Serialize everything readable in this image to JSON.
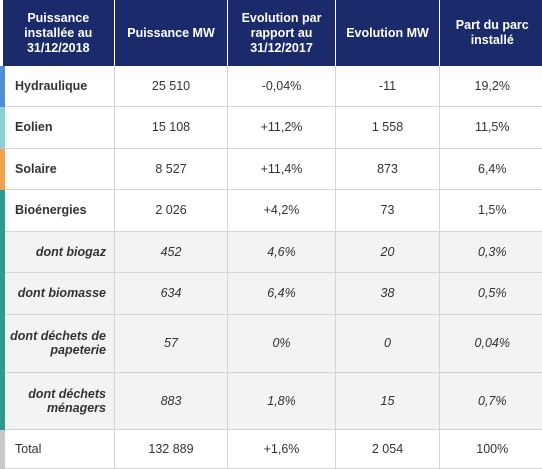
{
  "colors": {
    "header_bg": "#1b2a6b",
    "hydraulique": "#4f8fd6",
    "eolien": "#8fd0d6",
    "solaire": "#f0a24e",
    "bioenergies": "#2f9a8e",
    "sub": "#2f9a8e",
    "total": "#c8c8c8"
  },
  "headers": [
    "Puissance installée au 31/12/2018",
    "Puissance MW",
    "Evolution par rapport au 31/12/2017",
    "Evolution MW",
    "Part du parc installé"
  ],
  "rows": [
    {
      "label": "Hydraulique",
      "power": "25 510",
      "evolution_pct": "-0,04%",
      "evolution_mw": "-11",
      "share": "19,2%",
      "kind": "main",
      "color": "#4f8fd6",
      "height": 40
    },
    {
      "label": "Eolien",
      "power": "15 108",
      "evolution_pct": "+11,2%",
      "evolution_mw": "1 558",
      "share": "11,5%",
      "kind": "main",
      "color": "#8fd0d6",
      "height": 42
    },
    {
      "label": "Solaire",
      "power": "8 527",
      "evolution_pct": "+11,4%",
      "evolution_mw": "873",
      "share": "6,4%",
      "kind": "main",
      "color": "#f0a24e",
      "height": 41
    },
    {
      "label": "Bioénergies",
      "power": "2 026",
      "evolution_pct": "+4,2%",
      "evolution_mw": "73",
      "share": "1,5%",
      "kind": "main",
      "color": "#2f9a8e",
      "height": 42
    },
    {
      "label": "dont biogaz",
      "power": "452",
      "evolution_pct": "4,6%",
      "evolution_mw": "20",
      "share": "0,3%",
      "kind": "sub",
      "color": "#2f9a8e",
      "height": 41
    },
    {
      "label": "dont biomasse",
      "power": "634",
      "evolution_pct": "6,4%",
      "evolution_mw": "38",
      "share": "0,5%",
      "kind": "sub",
      "color": "#2f9a8e",
      "height": 42
    },
    {
      "label": "dont déchets de papeterie",
      "power": "57",
      "evolution_pct": "0%",
      "evolution_mw": "0",
      "share": "0,04%",
      "kind": "sub",
      "color": "#2f9a8e",
      "height": 58
    },
    {
      "label": "dont déchets ménagers",
      "power": "883",
      "evolution_pct": "1,8%",
      "evolution_mw": "15",
      "share": "0,7%",
      "kind": "sub",
      "color": "#2f9a8e",
      "height": 57
    },
    {
      "label": "Total",
      "power": "132 889",
      "evolution_pct": "+1,6%",
      "evolution_mw": "2 054",
      "share": "100%",
      "kind": "total",
      "color": "#c8c8c8",
      "height": 39
    }
  ]
}
